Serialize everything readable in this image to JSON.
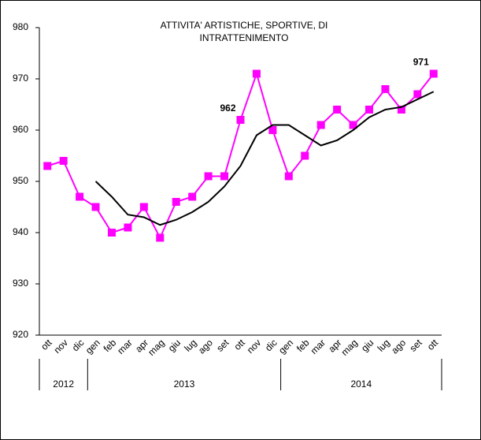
{
  "chart_data": {
    "type": "line",
    "title": [
      "ATTIVITA' ARTISTICHE, SPORTIVE, DI",
      "INTRATTENIMENTO"
    ],
    "categories": [
      "ott",
      "nov",
      "dic",
      "gen",
      "feb",
      "mar",
      "apr",
      "mag",
      "giu",
      "lug",
      "ago",
      "set",
      "ott",
      "nov",
      "dic",
      "gen",
      "feb",
      "mar",
      "apr",
      "mag",
      "giu",
      "lug",
      "ago",
      "set",
      "ott"
    ],
    "category_years": [
      "2012",
      "2012",
      "2012",
      "2013",
      "2013",
      "2013",
      "2013",
      "2013",
      "2013",
      "2013",
      "2013",
      "2013",
      "2013",
      "2013",
      "2013",
      "2014",
      "2014",
      "2014",
      "2014",
      "2014",
      "2014",
      "2014",
      "2014",
      "2014",
      "2014"
    ],
    "series": [
      {
        "color": "#ff00ff",
        "marker": "square",
        "values": [
          953,
          954,
          947,
          945,
          940,
          941,
          945,
          939,
          946,
          947,
          951,
          951,
          962,
          971,
          960,
          951,
          955,
          961,
          964,
          961,
          964,
          968,
          964,
          967,
          971
        ],
        "value_labels": [
          null,
          null,
          null,
          null,
          null,
          null,
          null,
          null,
          null,
          null,
          null,
          null,
          "962",
          null,
          null,
          null,
          null,
          null,
          null,
          null,
          null,
          null,
          null,
          null,
          "971"
        ]
      },
      {
        "color": "#000000",
        "values": [
          null,
          null,
          null,
          950,
          947,
          943.5,
          943,
          941.5,
          942.5,
          944,
          946,
          949,
          953,
          959,
          961,
          961,
          959,
          957,
          958,
          960,
          962.5,
          964,
          964.5,
          966,
          967.5
        ]
      }
    ],
    "ylim": [
      920,
      980
    ],
    "yticks": [
      920,
      930,
      940,
      950,
      960,
      970,
      980
    ]
  }
}
